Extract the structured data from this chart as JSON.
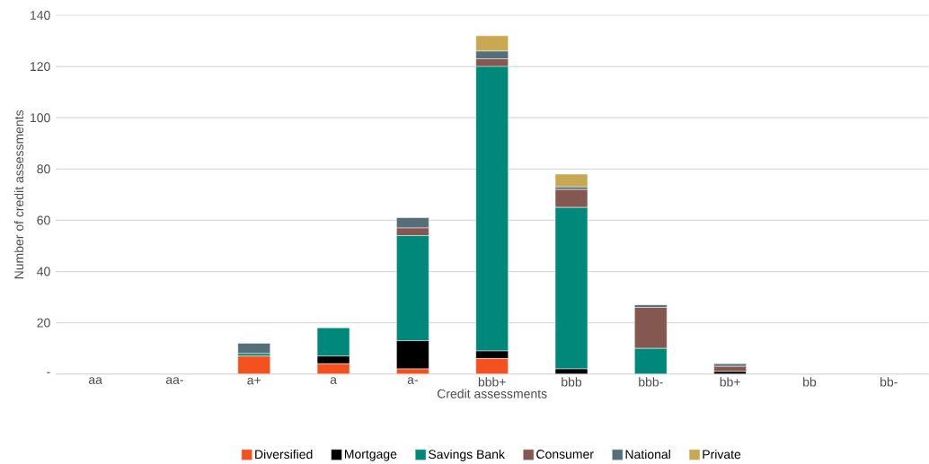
{
  "chart_data": {
    "type": "bar",
    "stacked": true,
    "xlabel": "Credit assessments",
    "ylabel": "Number of credit assessments",
    "categories": [
      "aa",
      "aa-",
      "a+",
      "a",
      "a-",
      "bbb+",
      "bbb",
      "bbb-",
      "bb+",
      "bb",
      "bb-"
    ],
    "series": [
      {
        "name": "Diversified",
        "color": "#f4511e",
        "values": [
          0,
          0,
          7,
          4,
          2,
          6,
          0,
          0,
          0,
          0,
          0
        ]
      },
      {
        "name": "Mortgage",
        "color": "#000000",
        "values": [
          0,
          0,
          0,
          3,
          11,
          3,
          2,
          0,
          1,
          0,
          0
        ]
      },
      {
        "name": "Savings Bank",
        "color": "#00897b",
        "values": [
          0,
          0,
          1,
          11,
          41,
          111,
          63,
          10,
          0,
          0,
          0
        ]
      },
      {
        "name": "Consumer",
        "color": "#845750",
        "values": [
          0,
          0,
          0,
          0,
          3,
          3,
          7,
          16,
          2,
          0,
          0
        ]
      },
      {
        "name": "National",
        "color": "#546e7a",
        "values": [
          0,
          0,
          4,
          0,
          4,
          3,
          1,
          1,
          1,
          0,
          0
        ]
      },
      {
        "name": "Private",
        "color": "#c9a853",
        "values": [
          0,
          0,
          0,
          0,
          0,
          6,
          5,
          0,
          0,
          0,
          0
        ]
      }
    ],
    "ylim": [
      0,
      140
    ],
    "yticks": [
      {
        "value": 0,
        "label": "-"
      },
      20,
      40,
      60,
      80,
      100,
      120,
      140
    ],
    "grid": "y",
    "legend": "bottom"
  }
}
